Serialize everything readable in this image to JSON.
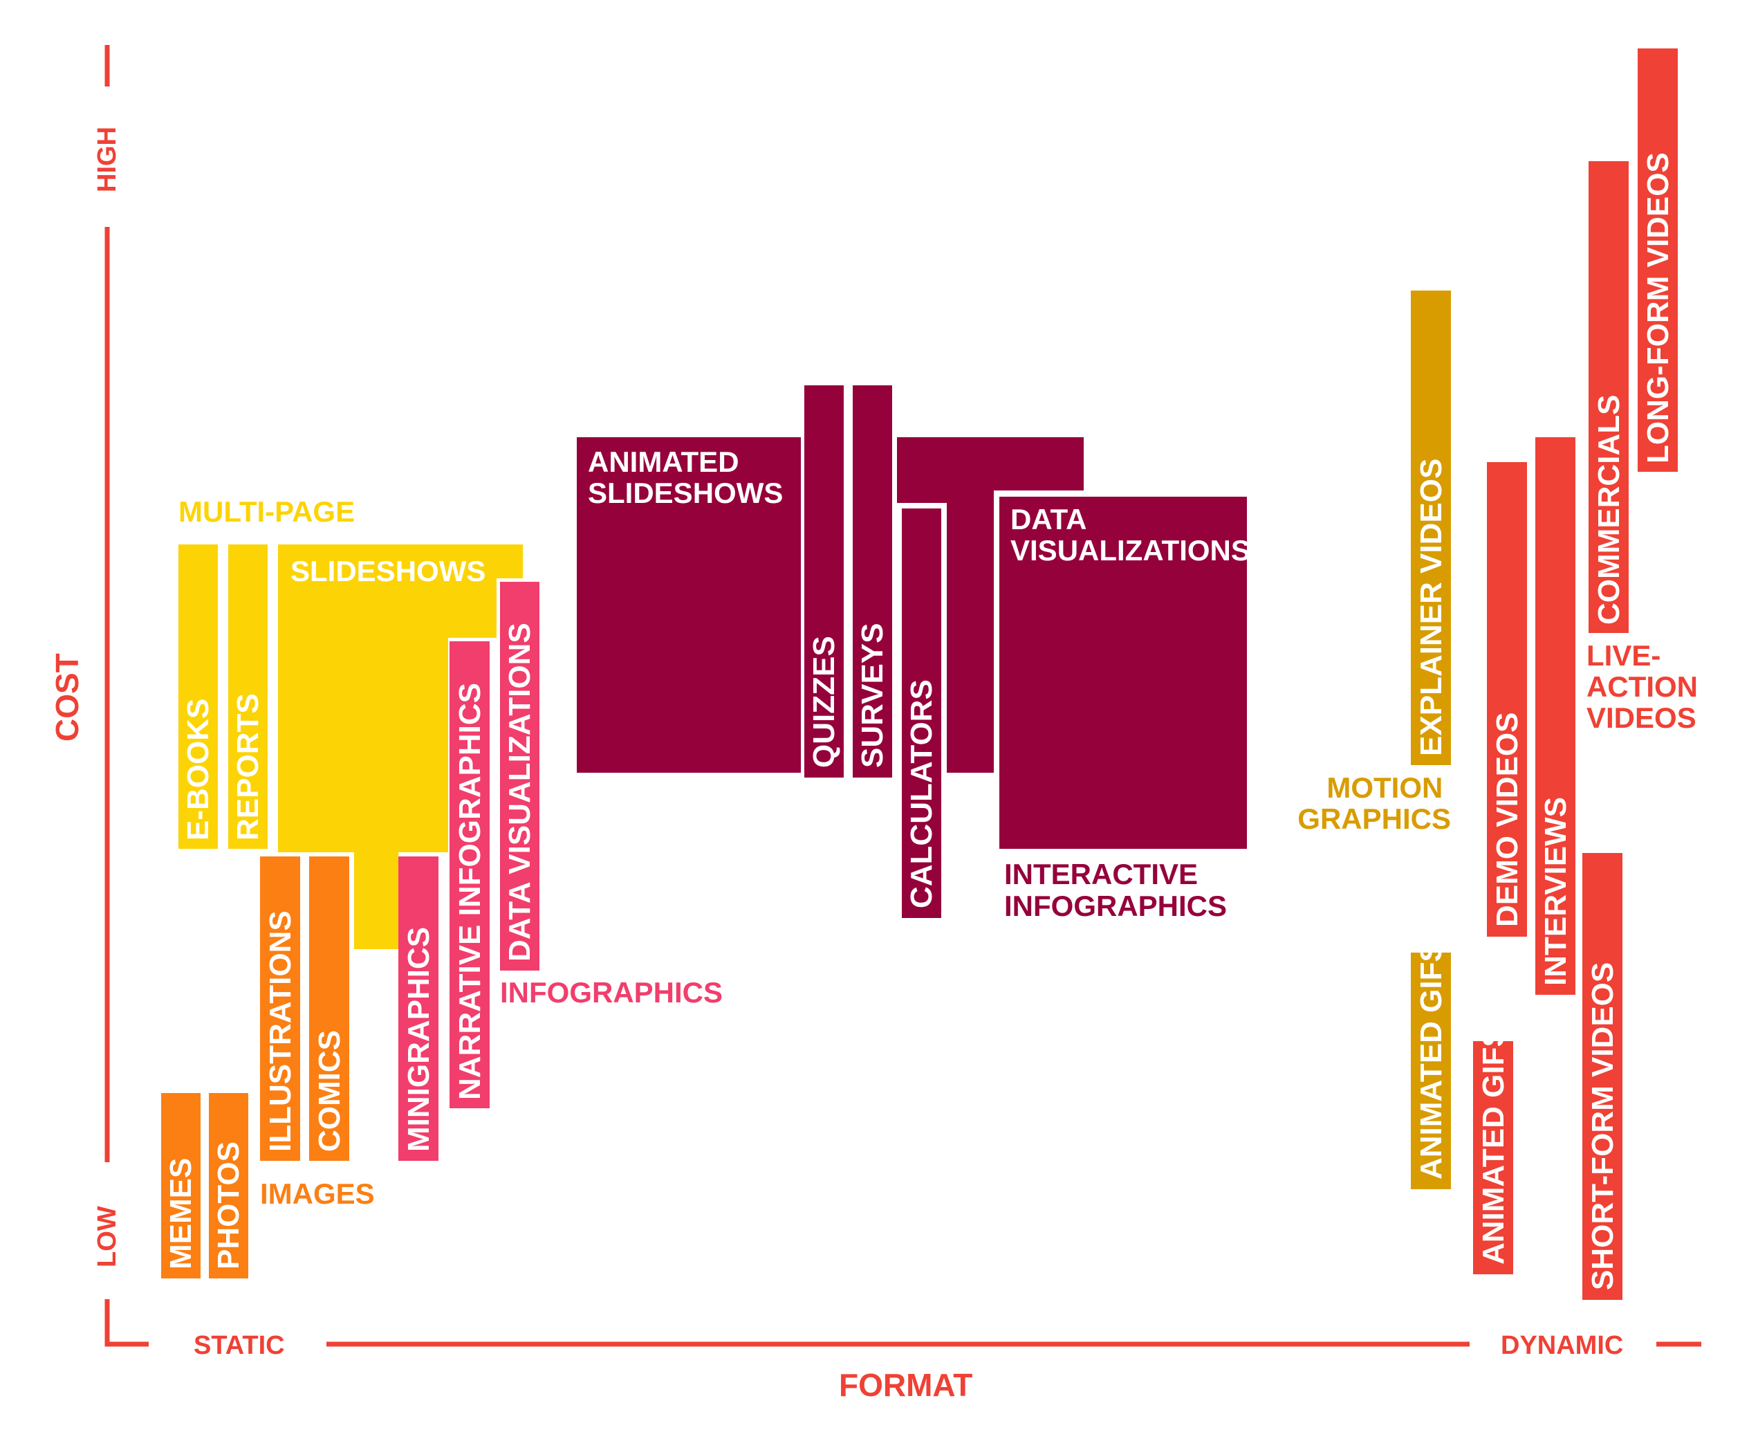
{
  "colors": {
    "axis": "#ef4135",
    "yellow": "#fcd405",
    "orange": "#fb7f13",
    "pink": "#f13e6c",
    "maroon": "#95013b",
    "gold": "#d89c00",
    "red": "#ef4135"
  },
  "axes": {
    "y_title": "COST",
    "y_high": "HIGH",
    "y_low": "LOW",
    "x_title": "FORMAT",
    "x_left": "STATIC",
    "x_right": "DYNAMIC"
  },
  "groups": {
    "multi_page": "MULTI-PAGE",
    "slideshows": "SLIDESHOWS",
    "images": "IMAGES",
    "infographics": "INFOGRAPHICS",
    "animated_slideshows": [
      "ANIMATED",
      "SLIDESHOWS"
    ],
    "data_visualizations": [
      "DATA",
      "VISUALIZATIONS"
    ],
    "interactive_infographics": [
      "INTERACTIVE",
      "INFOGRAPHICS"
    ],
    "motion_graphics": [
      "MOTION",
      "GRAPHICS"
    ],
    "live_action_videos": [
      "LIVE-",
      "ACTION",
      "VIDEOS"
    ]
  },
  "items": {
    "ebooks": "E-BOOKS",
    "reports": "REPORTS",
    "memes": "MEMES",
    "photos": "PHOTOS",
    "illustrations": "ILLUSTRATIONS",
    "comics": "COMICS",
    "minigraphics": "MINIGRAPHICS",
    "narrative_infographics": "NARRATIVE INFOGRAPHICS",
    "data_visualizations": "DATA VISUALIZATIONS",
    "quizzes": "QUIZZES",
    "surveys": "SURVEYS",
    "calculators": "CALCULATORS",
    "explainer_videos": "EXPLAINER VIDEOS",
    "animated_gifs_motion": "ANIMATED GIFS",
    "demo_videos": "DEMO VIDEOS",
    "animated_gifs_live": "ANIMATED GIFS",
    "interviews": "INTERVIEWS",
    "short_form_videos": "SHORT-FORM VIDEOS",
    "commercials": "COMMERCIALS",
    "long_form_videos": "LONG-FORM VIDEOS"
  }
}
